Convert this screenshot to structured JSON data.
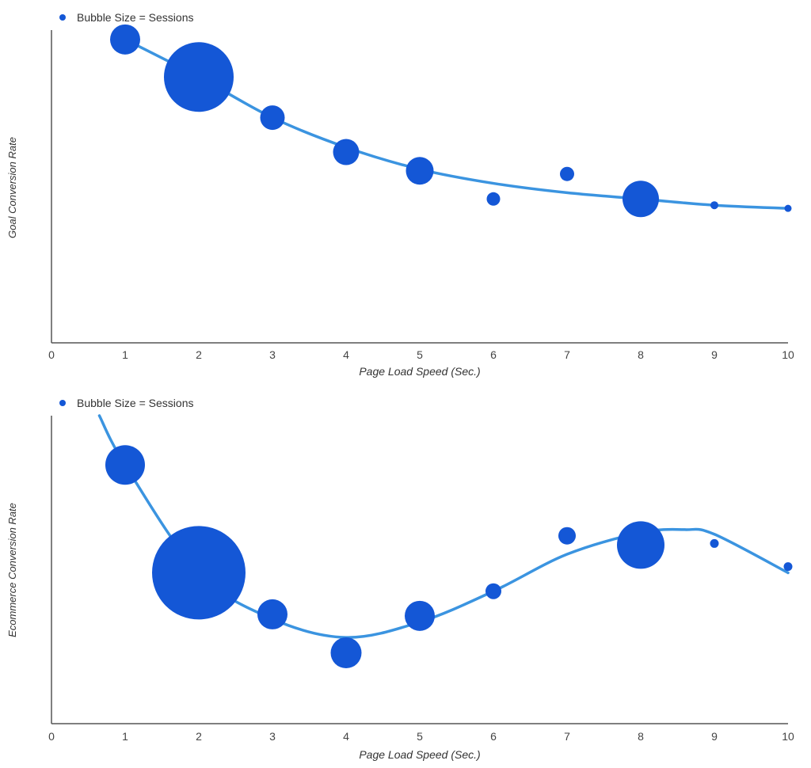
{
  "colors": {
    "bubble": "#1457D6",
    "trend": "#3B94E0",
    "axis": "#555555"
  },
  "chart_data": [
    {
      "type": "scatter",
      "subtype": "bubble",
      "legend": "Bubble Size = Sessions",
      "xlabel": "Page Load Speed (Sec.)",
      "ylabel": "Goal Conversion Rate",
      "xlim": [
        0,
        10
      ],
      "ylim": [
        0,
        1
      ],
      "xticks": [
        0,
        1,
        2,
        3,
        4,
        5,
        6,
        7,
        8,
        9,
        10
      ],
      "grid": false,
      "points": [
        {
          "x": 1,
          "y": 0.97,
          "size": 19
        },
        {
          "x": 2,
          "y": 0.85,
          "size": 44
        },
        {
          "x": 3,
          "y": 0.72,
          "size": 15.5
        },
        {
          "x": 4,
          "y": 0.61,
          "size": 16.5
        },
        {
          "x": 5,
          "y": 0.55,
          "size": 17.5
        },
        {
          "x": 6,
          "y": 0.46,
          "size": 8.5
        },
        {
          "x": 7,
          "y": 0.54,
          "size": 9
        },
        {
          "x": 8,
          "y": 0.46,
          "size": 23
        },
        {
          "x": 9,
          "y": 0.44,
          "size": 5
        },
        {
          "x": 10,
          "y": 0.43,
          "size": 4.5
        }
      ],
      "trend": [
        {
          "x": 1,
          "y": 0.97
        },
        {
          "x": 2,
          "y": 0.85
        },
        {
          "x": 3,
          "y": 0.72
        },
        {
          "x": 4,
          "y": 0.625
        },
        {
          "x": 5,
          "y": 0.555
        },
        {
          "x": 6,
          "y": 0.51
        },
        {
          "x": 7,
          "y": 0.48
        },
        {
          "x": 8,
          "y": 0.46
        },
        {
          "x": 9,
          "y": 0.44
        },
        {
          "x": 10,
          "y": 0.43
        }
      ]
    },
    {
      "type": "scatter",
      "subtype": "bubble",
      "legend": "Bubble Size = Sessions",
      "xlabel": "Page Load Speed (Sec.)",
      "ylabel": "Ecommerce Conversion Rate",
      "xlim": [
        0,
        10
      ],
      "ylim": [
        0,
        1
      ],
      "xticks": [
        0,
        1,
        2,
        3,
        4,
        5,
        6,
        7,
        8,
        9,
        10
      ],
      "grid": false,
      "points": [
        {
          "x": 1,
          "y": 0.84,
          "size": 25
        },
        {
          "x": 2,
          "y": 0.49,
          "size": 59
        },
        {
          "x": 3,
          "y": 0.355,
          "size": 19
        },
        {
          "x": 4,
          "y": 0.23,
          "size": 19.5
        },
        {
          "x": 5,
          "y": 0.35,
          "size": 19
        },
        {
          "x": 6,
          "y": 0.43,
          "size": 10
        },
        {
          "x": 7,
          "y": 0.61,
          "size": 11
        },
        {
          "x": 8,
          "y": 0.58,
          "size": 30
        },
        {
          "x": 9,
          "y": 0.585,
          "size": 5.5
        },
        {
          "x": 10,
          "y": 0.51,
          "size": 5.5
        }
      ],
      "trend": [
        {
          "x": 0.65,
          "y": 1.0
        },
        {
          "x": 1,
          "y": 0.84
        },
        {
          "x": 2,
          "y": 0.49
        },
        {
          "x": 3,
          "y": 0.34
        },
        {
          "x": 4,
          "y": 0.28
        },
        {
          "x": 5,
          "y": 0.33
        },
        {
          "x": 6,
          "y": 0.43
        },
        {
          "x": 7,
          "y": 0.55
        },
        {
          "x": 8,
          "y": 0.62
        },
        {
          "x": 8.6,
          "y": 0.63
        },
        {
          "x": 9,
          "y": 0.615
        },
        {
          "x": 10,
          "y": 0.49
        }
      ]
    }
  ]
}
